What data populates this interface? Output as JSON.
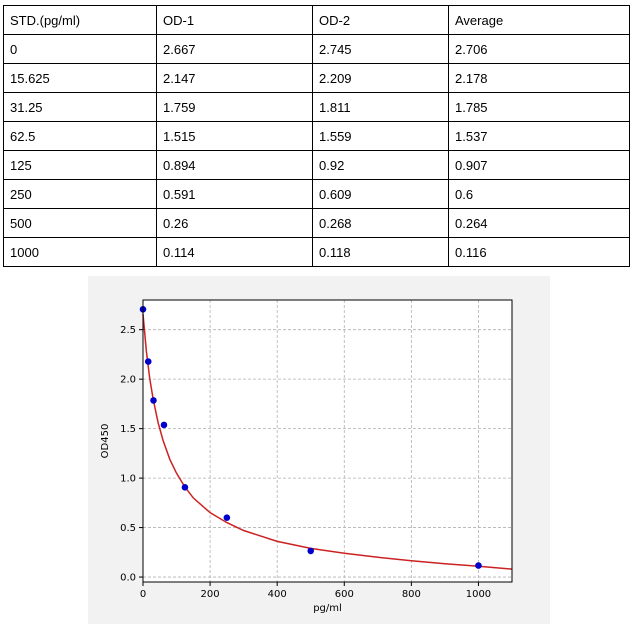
{
  "table": {
    "headers": [
      "STD.(pg/ml)",
      "OD-1",
      "OD-2",
      "Average"
    ],
    "rows": [
      [
        "0",
        "2.667",
        "2.745",
        "2.706"
      ],
      [
        "15.625",
        "2.147",
        "2.209",
        "2.178"
      ],
      [
        "31.25",
        "1.759",
        "1.811",
        "1.785"
      ],
      [
        "62.5",
        "1.515",
        "1.559",
        "1.537"
      ],
      [
        "125",
        "0.894",
        "0.92",
        "0.907"
      ],
      [
        "250",
        "0.591",
        "0.609",
        "0.6"
      ],
      [
        "500",
        "0.26",
        "0.268",
        "0.264"
      ],
      [
        "1000",
        "0.114",
        "0.118",
        "0.116"
      ]
    ]
  },
  "chart_data": {
    "type": "scatter",
    "title": "",
    "xlabel": "pg/ml",
    "ylabel": "OD450",
    "xlim": [
      0,
      1100
    ],
    "ylim": [
      -0.05,
      2.8
    ],
    "xticks": [
      0,
      200,
      400,
      600,
      800,
      1000
    ],
    "yticks": [
      0.0,
      0.5,
      1.0,
      1.5,
      2.0,
      2.5
    ],
    "xtick_labels": [
      "0",
      "200",
      "400",
      "600",
      "800",
      "1000"
    ],
    "ytick_labels": [
      "0.0",
      "0.5",
      "1.0",
      "1.5",
      "2.0",
      "2.5"
    ],
    "grid": true,
    "series": [
      {
        "name": "standards",
        "kind": "points",
        "color": "#0000cc",
        "x": [
          0,
          15.625,
          31.25,
          62.5,
          125,
          250,
          500,
          1000
        ],
        "y": [
          2.706,
          2.178,
          1.785,
          1.537,
          0.907,
          0.6,
          0.264,
          0.116
        ]
      },
      {
        "name": "fitted curve",
        "kind": "line",
        "color": "#cc2222",
        "x": [
          0,
          10,
          20,
          30,
          45,
          60,
          80,
          100,
          125,
          150,
          200,
          250,
          300,
          400,
          500,
          600,
          700,
          800,
          900,
          1000,
          1100
        ],
        "y": [
          2.66,
          2.28,
          2.01,
          1.8,
          1.56,
          1.38,
          1.19,
          1.05,
          0.91,
          0.8,
          0.65,
          0.55,
          0.47,
          0.36,
          0.29,
          0.24,
          0.2,
          0.165,
          0.135,
          0.11,
          0.08
        ]
      }
    ],
    "colors": {
      "figure_bg": "#f2f2f2",
      "axes_bg": "#ffffff",
      "grid": "#b0b0b0"
    }
  }
}
